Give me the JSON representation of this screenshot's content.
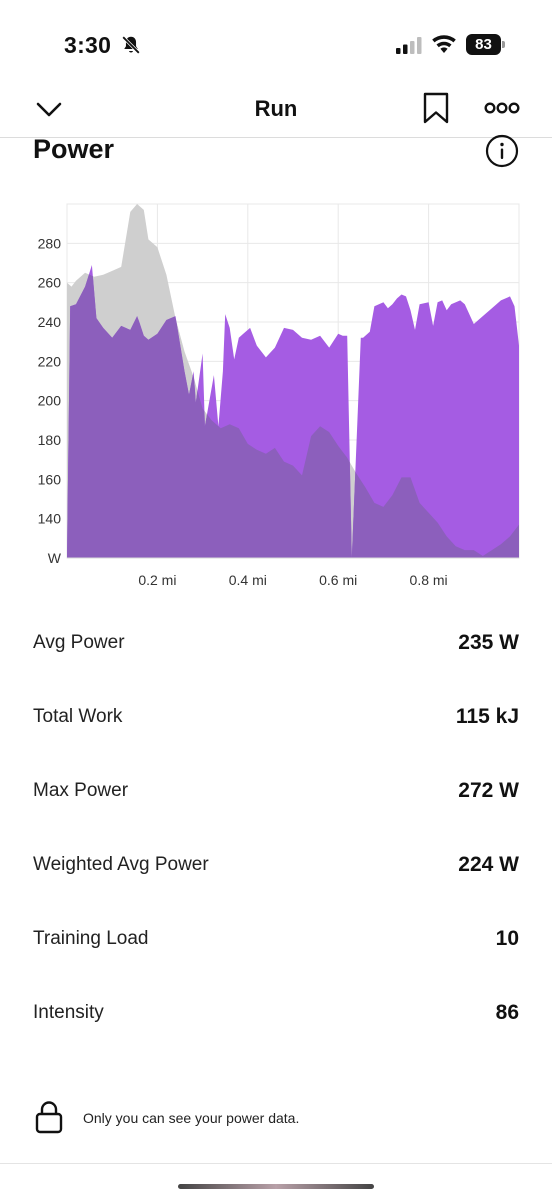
{
  "status_bar": {
    "time": "3:30",
    "battery": "83",
    "icons": [
      "bell-slash-icon",
      "signal-icon",
      "wifi-icon",
      "battery-icon"
    ]
  },
  "nav": {
    "title": "Run",
    "icons": [
      "chevron-down-icon",
      "bookmark-icon",
      "more-icon"
    ]
  },
  "section": {
    "title": "Power",
    "info_icon": "info-icon"
  },
  "colors": {
    "series_current": "#a55ce3",
    "series_overlap": "#8c5fbc",
    "series_compare": "#cfcfcf",
    "grid": "#e8e8e8"
  },
  "chart_data": {
    "type": "area",
    "title": "",
    "ylabel": "",
    "xlabel": "",
    "xlim": [
      0,
      1.0
    ],
    "ylim": [
      120,
      300
    ],
    "x_ticks": [
      0.2,
      0.4,
      0.6,
      0.8
    ],
    "x_tick_labels": [
      "0.2 mi",
      "0.4 mi",
      "0.6 mi",
      "0.8 mi"
    ],
    "y_ticks": [
      140,
      160,
      180,
      200,
      220,
      240,
      260,
      280
    ],
    "y_tick_labels": [
      "140",
      "160",
      "180",
      "200",
      "220",
      "240",
      "260",
      "280"
    ],
    "y_unit_label": "W",
    "grid": true,
    "legend": "none",
    "series": [
      {
        "x": [
          0,
          0.007,
          0.02,
          0.04,
          0.055,
          0.065,
          0.08,
          0.1,
          0.12,
          0.14,
          0.155,
          0.16,
          0.17,
          0.18,
          0.2,
          0.22,
          0.24,
          0.26,
          0.27,
          0.28,
          0.285,
          0.3,
          0.305,
          0.325,
          0.335,
          0.345,
          0.35,
          0.36,
          0.37,
          0.38,
          0.39,
          0.405,
          0.42,
          0.44,
          0.46,
          0.48,
          0.5,
          0.52,
          0.54,
          0.56,
          0.58,
          0.6,
          0.61,
          0.62,
          0.63,
          0.65,
          0.655,
          0.67,
          0.68,
          0.7,
          0.71,
          0.72,
          0.73,
          0.74,
          0.75,
          0.76,
          0.77,
          0.78,
          0.8,
          0.81,
          0.82,
          0.83,
          0.84,
          0.85,
          0.87,
          0.88,
          0.9,
          0.92,
          0.94,
          0.96,
          0.98,
          0.99,
          1.0
        ],
        "y": [
          120,
          248,
          249,
          258,
          269,
          242,
          237,
          232,
          238,
          236,
          243,
          240,
          233,
          231,
          234,
          241,
          243,
          215,
          203,
          215,
          199,
          224,
          187,
          213,
          187,
          215,
          244,
          237,
          221,
          232,
          234,
          237,
          228,
          222,
          227,
          237,
          236,
          232,
          231,
          233,
          227,
          234,
          233,
          233,
          120,
          232,
          232,
          235,
          248,
          250,
          247,
          249,
          252,
          254,
          253,
          246,
          236,
          249,
          250,
          238,
          250,
          251,
          246,
          249,
          251,
          249,
          239,
          243,
          247,
          251,
          253,
          248,
          228
        ]
      },
      {
        "x": [
          0,
          0.01,
          0.02,
          0.04,
          0.06,
          0.08,
          0.1,
          0.12,
          0.14,
          0.155,
          0.17,
          0.18,
          0.2,
          0.22,
          0.24,
          0.26,
          0.28,
          0.3,
          0.32,
          0.34,
          0.36,
          0.38,
          0.4,
          0.42,
          0.44,
          0.46,
          0.48,
          0.5,
          0.52,
          0.54,
          0.56,
          0.58,
          0.6,
          0.62,
          0.64,
          0.66,
          0.68,
          0.7,
          0.72,
          0.74,
          0.76,
          0.78,
          0.8,
          0.82,
          0.84,
          0.86,
          0.88,
          0.9,
          0.92,
          0.94,
          0.96,
          0.98,
          0.99,
          1.0
        ],
        "y": [
          260,
          258,
          261,
          265,
          263,
          264,
          266,
          268,
          296,
          300,
          297,
          282,
          278,
          264,
          242,
          225,
          212,
          196,
          190,
          186,
          188,
          186,
          178,
          175,
          173,
          176,
          169,
          167,
          162,
          182,
          187,
          184,
          177,
          171,
          163,
          156,
          148,
          146,
          152,
          161,
          161,
          148,
          143,
          138,
          131,
          126,
          124,
          124,
          121,
          124,
          127,
          131,
          134,
          137
        ]
      }
    ]
  },
  "stats": [
    {
      "label": "Avg Power",
      "value": "235 W"
    },
    {
      "label": "Total Work",
      "value": "115 kJ"
    },
    {
      "label": "Max Power",
      "value": "272 W"
    },
    {
      "label": "Weighted Avg Power",
      "value": "224 W"
    },
    {
      "label": "Training Load",
      "value": "10"
    },
    {
      "label": "Intensity",
      "value": "86"
    }
  ],
  "footer": {
    "note": "Only you can see your power data.",
    "icon": "lock-icon"
  }
}
